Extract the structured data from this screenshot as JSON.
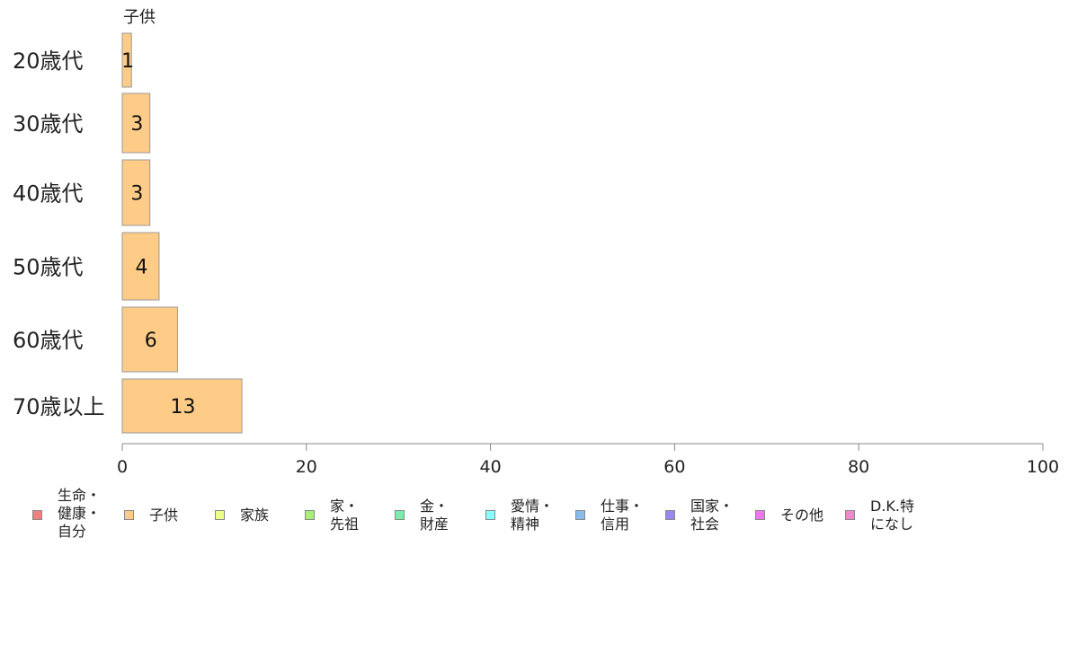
{
  "chart_data": {
    "type": "bar",
    "orientation": "horizontal",
    "series_label_on_top": "子供",
    "categories": [
      "20歳代",
      "30歳代",
      "40歳代",
      "50歳代",
      "60歳代",
      "70歳以上"
    ],
    "series": [
      {
        "name": "子供",
        "values": [
          1,
          3,
          3,
          4,
          6,
          13
        ],
        "color": "#FFCC88",
        "label_values": [
          "1",
          "3",
          "3",
          "4",
          "6",
          "13"
        ]
      }
    ],
    "xlim": [
      0,
      100
    ],
    "x_ticks": [
      "0",
      "20",
      "40",
      "60",
      "80",
      "100"
    ],
    "legend": {
      "placement": "bottom",
      "items": [
        {
          "label": "生命・\n健康・\n自分",
          "color": "#F08080"
        },
        {
          "label": "子供",
          "color": "#FFCC88"
        },
        {
          "label": "家族",
          "color": "#EEFF88"
        },
        {
          "label": "家・\n先祖",
          "color": "#AAEE77"
        },
        {
          "label": "金・\n財産",
          "color": "#77EEAA"
        },
        {
          "label": "愛情・\n精神",
          "color": "#88FFFF"
        },
        {
          "label": "仕事・\n信用",
          "color": "#88BBEE"
        },
        {
          "label": "国家・\n社会",
          "color": "#9988EE"
        },
        {
          "label": "その他",
          "color": "#EE77EE"
        },
        {
          "label": "D.K.特\nになし",
          "color": "#F088CC"
        }
      ]
    }
  }
}
